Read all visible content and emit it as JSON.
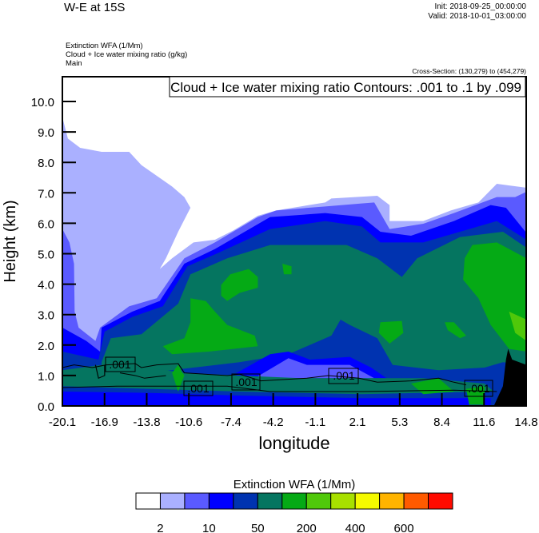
{
  "header": {
    "title": "W-E at 15S",
    "init": "Init: 2018-09-25_00:00:00",
    "valid": "Valid: 2018-10-01_03:00:00",
    "subtitle_lines": [
      "Extinction WFA   (1/Mm)",
      "Cloud + Ice water mixing ratio   (g/kg)",
      "Main"
    ],
    "cross_section": "Cross-Section: (130,279) to (454,279)"
  },
  "chart_data": {
    "type": "heatmap",
    "title": "W-E at 15S",
    "xlabel": "longitude",
    "ylabel": "Height (km)",
    "xlim": [
      -20.1,
      14.8
    ],
    "ylim": [
      0,
      10.8
    ],
    "x_ticks": [
      "-20.1",
      "-16.9",
      "-13.8",
      "-10.6",
      "-7.4",
      "-4.2",
      "-1.1",
      "2.1",
      "5.3",
      "8.4",
      "11.6",
      "14.8"
    ],
    "y_ticks": [
      "0.0",
      "1.0",
      "2.0",
      "3.0",
      "4.0",
      "5.0",
      "6.0",
      "7.0",
      "8.0",
      "9.0",
      "10.0"
    ],
    "contour_info": "Cloud + Ice water mixing ratio Contours: .001 to .1 by .099",
    "contour_labels": [
      ".001",
      ".001",
      ".001",
      ".001",
      ".001"
    ],
    "colorbar": {
      "title": "Extinction WFA  (1/Mm)",
      "colors": [
        "#ffffff",
        "#aab0ff",
        "#5a5aff",
        "#0000ff",
        "#0033b0",
        "#057560",
        "#05aa15",
        "#50c80a",
        "#a8e000",
        "#f5fa00",
        "#ffb400",
        "#ff5a00",
        "#ff0a00"
      ],
      "labels": [
        "2",
        "10",
        "50",
        "200",
        "400",
        "600"
      ]
    }
  }
}
